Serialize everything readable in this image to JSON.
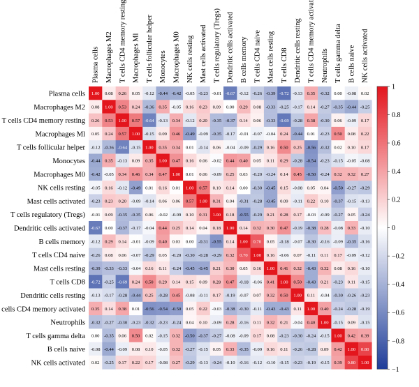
{
  "chart_data": {
    "type": "heatmap",
    "title": "",
    "xlabel": "",
    "ylabel": "",
    "labels": [
      "Plasma cells",
      "Macrophages M2",
      "T cells CD4 memory resting",
      "Macrophages Ml",
      "T cells follicular helper",
      "Monocytes",
      "Macrophages M0",
      "NK cells resting",
      "Mast cells activated",
      "T cells regulatory (Tregs)",
      "Dendritic cells activated",
      "B cells memory",
      "T cells CD4 naive",
      "Mast cells resting",
      "T cells CD8",
      "Dendritic cells resting",
      "T cells CD4 memory activated",
      "Neutrophils",
      "T cells gamma delta",
      "B cells naive",
      "NK cells activated"
    ],
    "values": [
      [
        1.0,
        0.08,
        0.26,
        0.05,
        -0.12,
        -0.44,
        -0.42,
        -0.05,
        -0.23,
        -0.01,
        -0.67,
        -0.12,
        -0.26,
        -0.39,
        -0.72,
        -0.13,
        0.35,
        -0.32,
        0.0,
        -0.08,
        0.02
      ],
      [
        0.08,
        1.0,
        0.53,
        0.24,
        -0.36,
        0.35,
        -0.05,
        0.16,
        0.23,
        0.09,
        0.0,
        0.29,
        0.08,
        -0.33,
        -0.25,
        -0.17,
        0.14,
        -0.27,
        -0.35,
        -0.44,
        -0.25
      ],
      [
        0.26,
        0.53,
        1.0,
        0.57,
        -0.64,
        -0.13,
        0.34,
        -0.12,
        0.2,
        -0.35,
        -0.37,
        0.14,
        0.06,
        -0.33,
        -0.69,
        -0.28,
        0.38,
        -0.3,
        0.06,
        -0.09,
        0.17
      ],
      [
        0.05,
        0.24,
        0.57,
        1.0,
        -0.15,
        0.09,
        0.46,
        -0.49,
        -0.09,
        -0.35,
        -0.17,
        -0.01,
        -0.07,
        -0.04,
        0.24,
        -0.44,
        0.01,
        -0.23,
        0.5,
        0.08,
        0.22
      ],
      [
        -0.12,
        -0.36,
        -0.64,
        -0.15,
        1.0,
        0.35,
        0.34,
        0.01,
        -0.14,
        0.06,
        -0.04,
        -0.09,
        -0.29,
        0.16,
        0.5,
        0.25,
        -0.56,
        -0.32,
        0.02,
        0.1,
        0.17
      ],
      [
        -0.44,
        0.35,
        -0.13,
        0.09,
        0.35,
        1.0,
        0.47,
        0.16,
        0.06,
        -0.02,
        0.44,
        0.4,
        0.05,
        0.11,
        0.29,
        -0.28,
        -0.54,
        -0.23,
        -0.15,
        -0.05,
        -0.08
      ],
      [
        -0.42,
        -0.05,
        0.34,
        0.46,
        0.34,
        0.47,
        1.0,
        0.01,
        0.06,
        -0.09,
        0.25,
        0.03,
        -0.2,
        -0.24,
        0.14,
        0.45,
        -0.5,
        -0.24,
        0.32,
        0.32,
        0.27
      ],
      [
        -0.05,
        0.16,
        -0.12,
        -0.49,
        0.01,
        0.16,
        0.01,
        1.0,
        0.57,
        0.1,
        0.14,
        0.0,
        -0.3,
        -0.45,
        0.15,
        -0.08,
        0.05,
        0.04,
        -0.5,
        -0.27,
        -0.29
      ],
      [
        -0.23,
        0.23,
        0.2,
        -0.09,
        -0.14,
        0.06,
        0.06,
        0.57,
        1.0,
        0.31,
        0.04,
        -0.31,
        -0.28,
        -0.45,
        0.09,
        -0.11,
        0.22,
        0.1,
        -0.37,
        -0.15,
        -0.13
      ],
      [
        -0.01,
        0.09,
        -0.35,
        -0.35,
        0.06,
        -0.02,
        -0.09,
        0.1,
        0.31,
        1.0,
        0.18,
        -0.55,
        -0.29,
        0.21,
        0.28,
        0.17,
        -0.03,
        -0.09,
        -0.27,
        0.05,
        -0.24
      ],
      [
        -0.67,
        0.0,
        -0.37,
        -0.17,
        -0.04,
        0.44,
        0.25,
        0.14,
        0.04,
        0.18,
        1.0,
        0.14,
        0.32,
        0.3,
        0.47,
        -0.19,
        -0.38,
        0.28,
        -0.08,
        0.33,
        -0.1
      ],
      [
        -0.12,
        0.29,
        0.14,
        -0.01,
        -0.09,
        0.4,
        0.03,
        0.0,
        -0.31,
        -0.55,
        0.14,
        1.0,
        0.7,
        0.05,
        -0.18,
        -0.07,
        -0.3,
        -0.16,
        -0.09,
        -0.35,
        -0.16
      ],
      [
        -0.26,
        0.08,
        0.06,
        -0.07,
        -0.29,
        0.05,
        -0.2,
        -0.3,
        -0.28,
        -0.29,
        0.32,
        0.7,
        1.0,
        0.16,
        -0.06,
        0.07,
        -0.11,
        0.11,
        0.17,
        -0.09,
        -0.12
      ],
      [
        -0.39,
        -0.33,
        -0.33,
        -0.04,
        0.16,
        0.11,
        -0.24,
        -0.45,
        -0.45,
        0.21,
        0.3,
        0.05,
        0.16,
        1.0,
        0.41,
        0.32,
        -0.43,
        0.32,
        0.08,
        0.16,
        -0.1
      ],
      [
        -0.72,
        -0.25,
        -0.69,
        0.24,
        0.5,
        0.29,
        0.14,
        0.15,
        0.09,
        0.28,
        0.47,
        -0.18,
        -0.06,
        0.41,
        1.0,
        0.5,
        -0.43,
        0.21,
        -0.23,
        0.11,
        -0.15
      ],
      [
        -0.13,
        -0.17,
        -0.28,
        -0.44,
        0.25,
        -0.28,
        0.45,
        -0.08,
        -0.11,
        0.17,
        -0.19,
        -0.07,
        0.07,
        0.32,
        0.5,
        1.0,
        0.11,
        -0.04,
        -0.3,
        -0.26,
        -0.23
      ],
      [
        0.35,
        0.14,
        0.38,
        0.01,
        -0.56,
        -0.54,
        -0.5,
        0.05,
        0.22,
        -0.03,
        -0.38,
        -0.3,
        -0.11,
        -0.43,
        -0.43,
        0.11,
        1.0,
        0.4,
        -0.24,
        -0.28,
        -0.19
      ],
      [
        -0.32,
        -0.27,
        -0.3,
        -0.23,
        -0.32,
        -0.23,
        -0.24,
        0.04,
        0.1,
        -0.09,
        0.28,
        -0.16,
        0.11,
        0.32,
        0.21,
        -0.04,
        0.4,
        1.0,
        -0.15,
        0.09,
        -0.15
      ],
      [
        0.0,
        -0.35,
        0.06,
        0.5,
        0.02,
        -0.15,
        0.32,
        -0.5,
        -0.37,
        -0.27,
        -0.08,
        -0.09,
        0.17,
        0.08,
        -0.23,
        -0.3,
        -0.24,
        -0.15,
        1.0,
        0.42,
        0.39
      ],
      [
        -0.08,
        -0.44,
        -0.09,
        0.08,
        0.1,
        -0.05,
        0.32,
        -0.27,
        -0.15,
        0.05,
        0.33,
        -0.35,
        -0.09,
        0.16,
        0.11,
        -0.26,
        -0.28,
        0.09,
        0.42,
        1.0,
        0.8
      ],
      [
        0.02,
        -0.25,
        0.17,
        0.22,
        0.17,
        -0.08,
        0.27,
        -0.29,
        -0.13,
        -0.24,
        -0.1,
        -0.16,
        -0.12,
        -0.1,
        -0.15,
        -0.23,
        -0.19,
        -0.15,
        0.39,
        0.8,
        1.0
      ]
    ],
    "color_scale": {
      "min": -1,
      "max": 1,
      "low_color": "#1f3d99",
      "mid_color": "#ffffff",
      "high_color": "#e3151d",
      "ticks": [
        "1",
        "0.8",
        "0.6",
        "0.4",
        "0.2",
        "0",
        "−0.2",
        "−0.4",
        "−0.6",
        "−0.8",
        "−1"
      ]
    },
    "grid": false,
    "legend": "right"
  }
}
